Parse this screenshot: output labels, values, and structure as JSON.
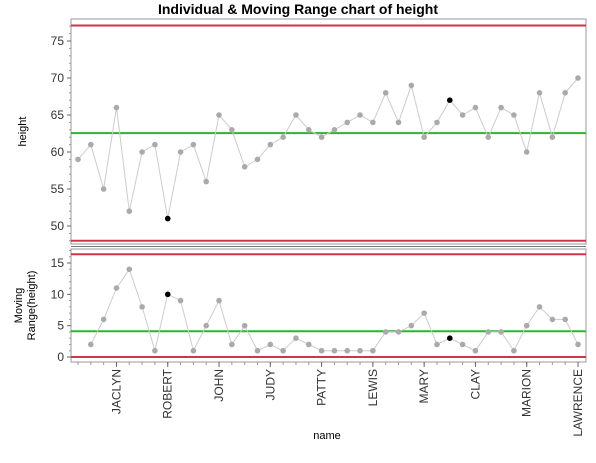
{
  "chart_data": {
    "type": "line",
    "title": "Individual & Moving Range chart of height",
    "xlabel": "name",
    "x_tick_labels": [
      "JACLYN",
      "ROBERT",
      "JOHN",
      "JUDY",
      "PATTY",
      "LEWIS",
      "MARY",
      "CLAY",
      "MARION",
      "LAWRENCE"
    ],
    "x_tick_positions": [
      3,
      7,
      11,
      15,
      19,
      23,
      27,
      31,
      35,
      39
    ],
    "panels": [
      {
        "ylabel": "height",
        "ylim": [
          47,
          78
        ],
        "yticks": [
          50,
          55,
          60,
          65,
          70,
          75
        ],
        "values": [
          59,
          61,
          55,
          66,
          52,
          60,
          61,
          51,
          60,
          61,
          56,
          65,
          63,
          58,
          59,
          61,
          62,
          65,
          63,
          62,
          63,
          64,
          65,
          64,
          68,
          64,
          69,
          62,
          64,
          67,
          65,
          66,
          62,
          66,
          65,
          60,
          68,
          62,
          68,
          70
        ],
        "center_line": 62.55,
        "ucl": 77.1,
        "lcl": 48.0,
        "highlighted_points": [
          7,
          29
        ]
      },
      {
        "ylabel": "Moving Range(height)",
        "ylim": [
          -0.5,
          17
        ],
        "yticks": [
          0,
          5,
          10,
          15
        ],
        "values": [
          null,
          2,
          6,
          11,
          14,
          8,
          1,
          10,
          9,
          1,
          5,
          9,
          2,
          5,
          1,
          2,
          1,
          3,
          2,
          1,
          1,
          1,
          1,
          1,
          4,
          4,
          5,
          7,
          2,
          3,
          2,
          1,
          4,
          4,
          1,
          5,
          8,
          6,
          6,
          2
        ],
        "center_line": 4.1,
        "ucl": 16.4,
        "lcl": 0,
        "highlighted_points": [
          7,
          29
        ]
      }
    ],
    "colors": {
      "line": "#cccccc",
      "point": "#aaaaaa",
      "highlight": "#000000",
      "center": "#2cb52c",
      "limit": "#d2324a"
    }
  }
}
